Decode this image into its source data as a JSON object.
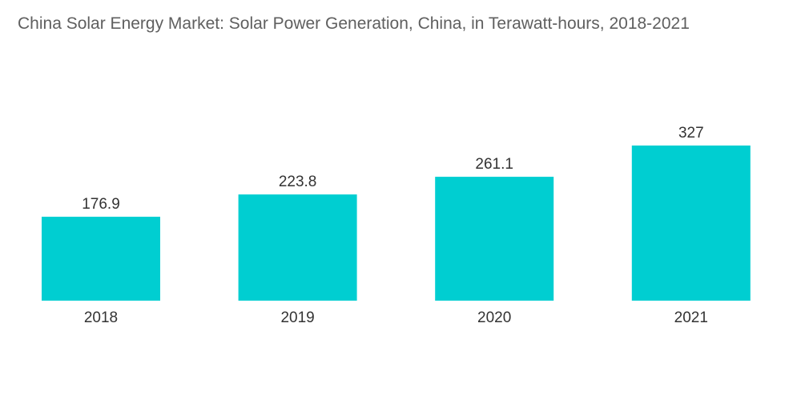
{
  "chart_data": {
    "type": "bar",
    "title": "China Solar Energy Market: Solar Power Generation, China, in Terawatt-hours, 2018-2021",
    "categories": [
      "2018",
      "2019",
      "2020",
      "2021"
    ],
    "values": [
      176.9,
      223.8,
      261.1,
      327
    ],
    "value_labels": [
      "176.9",
      "223.8",
      "261.1",
      "327"
    ],
    "xlabel": "",
    "ylabel": "",
    "ylim": [
      0,
      327
    ],
    "grid": false,
    "legend": "none",
    "bar_color": "#00CED1"
  }
}
